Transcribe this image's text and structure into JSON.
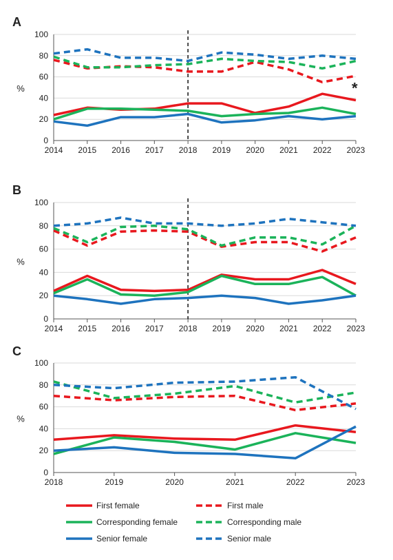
{
  "colors": {
    "female": "solid",
    "male": "dashed",
    "first": "#e8181e",
    "corresponding": "#1bb35a",
    "senior": "#1e73be"
  },
  "chart_data": [
    {
      "type": "line",
      "panel_label": "A",
      "ylabel": "%",
      "ylim": [
        0,
        100
      ],
      "yticks": [
        "0",
        "20",
        "40",
        "60",
        "80",
        "100"
      ],
      "x": [
        2014,
        2015,
        2016,
        2017,
        2018,
        2019,
        2020,
        2021,
        2022,
        2023
      ],
      "xtick_labels": [
        "2014",
        "2015",
        "2016",
        "2017",
        "2018",
        "2019",
        "2020",
        "2021",
        "2022",
        "2023"
      ],
      "vline_x": 2018,
      "annotation": {
        "text": "*",
        "x": 2023,
        "y": 38
      },
      "series": [
        {
          "name": "First female",
          "color": "#e8181e",
          "dash": false,
          "values": [
            24,
            31,
            29,
            30,
            35,
            35,
            26,
            32,
            44,
            38
          ]
        },
        {
          "name": "First male",
          "color": "#e8181e",
          "dash": true,
          "values": [
            76,
            68,
            70,
            69,
            65,
            65,
            74,
            67,
            55,
            61
          ]
        },
        {
          "name": "Corresponding female",
          "color": "#1bb35a",
          "dash": false,
          "values": [
            20,
            30,
            30,
            29,
            28,
            23,
            25,
            26,
            31,
            25
          ]
        },
        {
          "name": "Corresponding male",
          "color": "#1bb35a",
          "dash": true,
          "values": [
            79,
            69,
            69,
            71,
            72,
            77,
            75,
            74,
            68,
            75
          ]
        },
        {
          "name": "Senior female",
          "color": "#1e73be",
          "dash": false,
          "values": [
            18,
            14,
            22,
            22,
            25,
            17,
            19,
            23,
            20,
            23
          ]
        },
        {
          "name": "Senior male",
          "color": "#1e73be",
          "dash": true,
          "values": [
            82,
            86,
            78,
            78,
            75,
            83,
            81,
            77,
            80,
            77
          ]
        }
      ]
    },
    {
      "type": "line",
      "panel_label": "B",
      "ylabel": "%",
      "ylim": [
        0,
        100
      ],
      "yticks": [
        "0",
        "20",
        "40",
        "60",
        "80",
        "100"
      ],
      "x": [
        2014,
        2015,
        2016,
        2017,
        2018,
        2019,
        2020,
        2021,
        2022,
        2023
      ],
      "xtick_labels": [
        "2014",
        "2015",
        "2016",
        "2017",
        "2018",
        "2019",
        "2020",
        "2021",
        "2022",
        "2023"
      ],
      "vline_x": 2018,
      "series": [
        {
          "name": "First female",
          "color": "#e8181e",
          "dash": false,
          "values": [
            24,
            37,
            25,
            24,
            25,
            38,
            34,
            34,
            42,
            30
          ]
        },
        {
          "name": "First male",
          "color": "#e8181e",
          "dash": true,
          "values": [
            76,
            63,
            75,
            76,
            75,
            62,
            66,
            66,
            58,
            70
          ]
        },
        {
          "name": "Corresponding female",
          "color": "#1bb35a",
          "dash": false,
          "values": [
            22,
            34,
            21,
            20,
            23,
            37,
            30,
            30,
            36,
            20
          ]
        },
        {
          "name": "Corresponding male",
          "color": "#1bb35a",
          "dash": true,
          "values": [
            78,
            66,
            79,
            80,
            77,
            63,
            70,
            70,
            64,
            80
          ]
        },
        {
          "name": "Senior female",
          "color": "#1e73be",
          "dash": false,
          "values": [
            20,
            17,
            13,
            17,
            18,
            20,
            18,
            13,
            16,
            20
          ]
        },
        {
          "name": "Senior male",
          "color": "#1e73be",
          "dash": true,
          "values": [
            80,
            82,
            87,
            82,
            82,
            80,
            82,
            86,
            83,
            80
          ]
        }
      ]
    },
    {
      "type": "line",
      "panel_label": "C",
      "ylabel": "%",
      "ylim": [
        0,
        100
      ],
      "yticks": [
        "0",
        "20",
        "40",
        "60",
        "80",
        "100"
      ],
      "x": [
        2018,
        2019,
        2020,
        2021,
        2022,
        2023
      ],
      "xtick_labels": [
        "2018",
        "2019",
        "2020",
        "2021",
        "2022",
        "2023"
      ],
      "series": [
        {
          "name": "First female",
          "color": "#e8181e",
          "dash": false,
          "values": [
            30,
            34,
            31,
            30,
            43,
            37
          ]
        },
        {
          "name": "First male",
          "color": "#e8181e",
          "dash": true,
          "values": [
            70,
            66,
            69,
            70,
            57,
            63
          ]
        },
        {
          "name": "Corresponding female",
          "color": "#1bb35a",
          "dash": false,
          "values": [
            17,
            32,
            28,
            21,
            36,
            27
          ]
        },
        {
          "name": "Corresponding male",
          "color": "#1bb35a",
          "dash": true,
          "values": [
            83,
            68,
            72,
            79,
            64,
            73
          ]
        },
        {
          "name": "Senior female",
          "color": "#1e73be",
          "dash": false,
          "values": [
            20,
            23,
            18,
            17,
            13,
            42
          ]
        },
        {
          "name": "Senior male",
          "color": "#1e73be",
          "dash": true,
          "values": [
            80,
            77,
            82,
            83,
            87,
            58
          ]
        }
      ]
    }
  ],
  "legend": {
    "placement": "bottom",
    "items": [
      {
        "label": "First female",
        "color": "#e8181e",
        "dash": false
      },
      {
        "label": "First male",
        "color": "#e8181e",
        "dash": true
      },
      {
        "label": "Corresponding female",
        "color": "#1bb35a",
        "dash": false
      },
      {
        "label": "Corresponding male",
        "color": "#1bb35a",
        "dash": true
      },
      {
        "label": "Senior female",
        "color": "#1e73be",
        "dash": false
      },
      {
        "label": "Senior male",
        "color": "#1e73be",
        "dash": true
      }
    ]
  }
}
